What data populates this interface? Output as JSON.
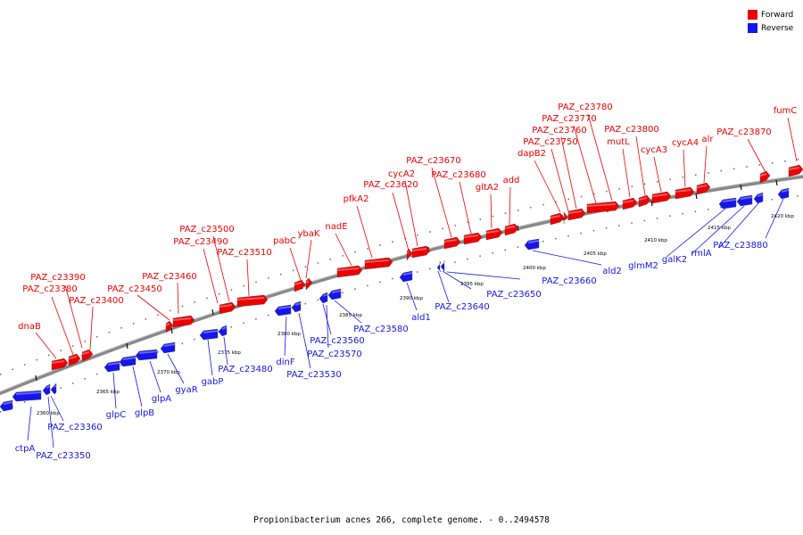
{
  "colors": {
    "forward": "#ee0000",
    "reverse": "#1515ee",
    "backbone": "#999999"
  },
  "legend": [
    {
      "label": "Forward",
      "color": "#ee0000"
    },
    {
      "label": "Reverse",
      "color": "#1515ee"
    }
  ],
  "caption": "Propionibacterium acnes 266, complete genome. - 0..2494578",
  "scale_labels": [
    "2360 kbp",
    "2365 kbp",
    "2370 kbp",
    "2375 kbp",
    "2380 kbp",
    "2385 kbp",
    "2390 kbp",
    "2395 kbp",
    "2400 kbp",
    "2405 kbp",
    "2410 kbp",
    "2415 kbp",
    "2420 kbp"
  ],
  "forward_genes": [
    "dnaB",
    "PAZ_c23380",
    "PAZ_c23390",
    "PAZ_c23400",
    "PAZ_c23450",
    "PAZ_c23460",
    "PAZ_c23490",
    "PAZ_c23500",
    "PAZ_c23510",
    "pabC",
    "ybaK",
    "nadE",
    "pfkA2",
    "PAZ_c23620",
    "cycA2",
    "PAZ_c23670",
    "PAZ_c23680",
    "gltA2",
    "add",
    "dapB2",
    "PAZ_c23750",
    "PAZ_c23760",
    "PAZ_c23770",
    "PAZ_c23780",
    "mutL",
    "PAZ_c23800",
    "cycA3",
    "cycA4",
    "alr",
    "PAZ_c23870",
    "fumC"
  ],
  "reverse_genes": [
    "ctpA",
    "PAZ_c23350",
    "PAZ_c23360",
    "glpC",
    "glpB",
    "glpA",
    "gyaR",
    "gabP",
    "PAZ_c23480",
    "dinF",
    "PAZ_c23530",
    "PAZ_c23560",
    "PAZ_c23570",
    "PAZ_c23580",
    "ald1",
    "PAZ_c23640",
    "PAZ_c23650",
    "PAZ_c23660",
    "ald2",
    "glmM2",
    "galK2",
    "rmlA",
    "PAZ_c23880"
  ]
}
